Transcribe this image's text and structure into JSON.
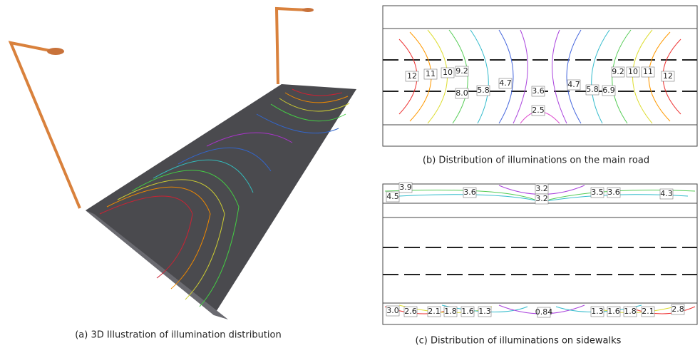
{
  "panel_a": {
    "caption": "(a) 3D Illustration of illumination distribution"
  },
  "panel_b": {
    "caption": "(b) Distribution of illuminations on the main road",
    "labels": [
      "12",
      "11",
      "10",
      "9.2",
      "8.0",
      "5.8",
      "4.7",
      "3.6",
      "2.5",
      "4.7",
      "5.8",
      "6.9",
      "9.2",
      "10",
      "11",
      "12"
    ]
  },
  "panel_c": {
    "caption": "(c) Distribution of illuminations on sidewalks",
    "top_labels": [
      "3.9",
      "4.5",
      "3.6",
      "3.2",
      "3.2",
      "3.5",
      "3.6",
      "4.3"
    ],
    "bottom_labels": [
      "3.0",
      "2.6",
      "2.1",
      "1.8",
      "1.6",
      "1.3",
      "0.84",
      "1.3",
      "1.6",
      "1.8",
      "2.1",
      "2.8"
    ]
  }
}
